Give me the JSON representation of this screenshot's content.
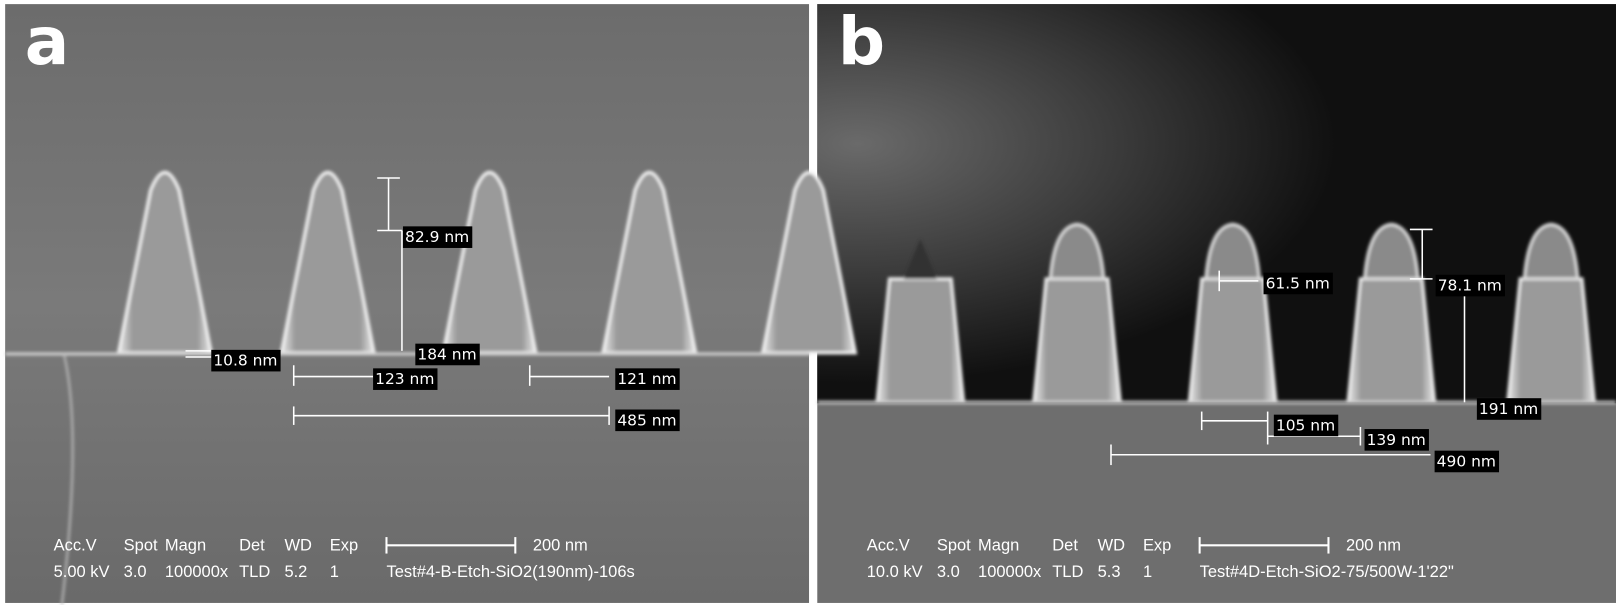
{
  "panels": [
    {
      "label": "a",
      "measurements": [
        "82.9 nm",
        "10.8 nm",
        "184 nm",
        "123 nm",
        "121 nm",
        "485 nm"
      ],
      "info": {
        "header": [
          "Acc.V",
          "Spot",
          "Magn",
          "Det",
          "WD",
          "Exp"
        ],
        "values": [
          "5.00 kV",
          "3.0",
          "100000x",
          "TLD",
          "5.2",
          "1"
        ],
        "scale": "200 nm",
        "sample": "Test#4-B-Etch-SiO2(190nm)-106s"
      }
    },
    {
      "label": "b",
      "measurements": [
        "61.5 nm",
        "78.1 nm",
        "191 nm",
        "105 nm",
        "139 nm",
        "490 nm"
      ],
      "info": {
        "header": [
          "Acc.V",
          "Spot",
          "Magn",
          "Det",
          "WD",
          "Exp"
        ],
        "values": [
          "10.0 kV",
          "3.0",
          "100000x",
          "TLD",
          "5.3",
          "1"
        ],
        "scale": "200 nm",
        "sample": "Test#4D-Etch-SiO2-75/500W-1'22\""
      }
    }
  ]
}
